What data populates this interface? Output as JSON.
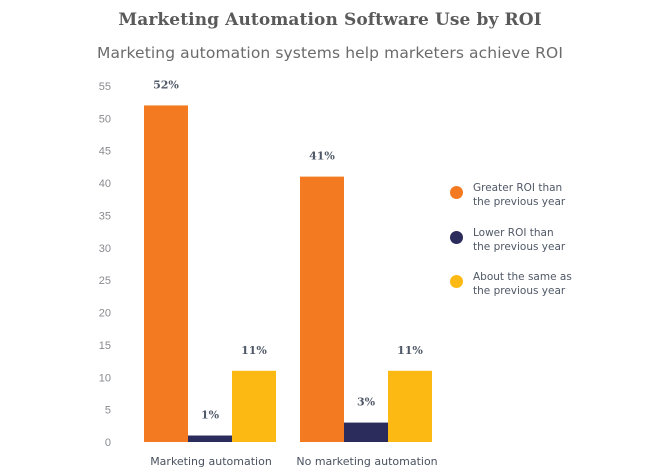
{
  "chart_data": {
    "type": "bar",
    "title": "Marketing Automation Software Use by ROI",
    "subtitle": "Marketing automation systems help marketers achieve ROI",
    "xlabel": "",
    "ylabel": "",
    "ylim": [
      0,
      55
    ],
    "yticks": [
      0,
      5,
      10,
      15,
      20,
      25,
      30,
      35,
      40,
      45,
      50,
      55
    ],
    "grid": false,
    "legend_position": "right",
    "categories": [
      "Marketing automation",
      "No marketing automation"
    ],
    "series": [
      {
        "name": "Greater ROI than the previous year",
        "legend_lines": [
          "Greater ROI than",
          "the previous year"
        ],
        "color": "#f47a22",
        "values": [
          52,
          41
        ],
        "labels": [
          "52%",
          "41%"
        ]
      },
      {
        "name": "Lower ROI than the previous year",
        "legend_lines": [
          "Lower ROI than",
          "the previous year"
        ],
        "color": "#2c2c5c",
        "values": [
          1,
          3
        ],
        "labels": [
          "1%",
          "3%"
        ]
      },
      {
        "name": "About the same as the previous year",
        "legend_lines": [
          "About the same as",
          "the previous year"
        ],
        "color": "#fdb913",
        "values": [
          11,
          11
        ],
        "labels": [
          "11%",
          "11%"
        ]
      }
    ]
  }
}
